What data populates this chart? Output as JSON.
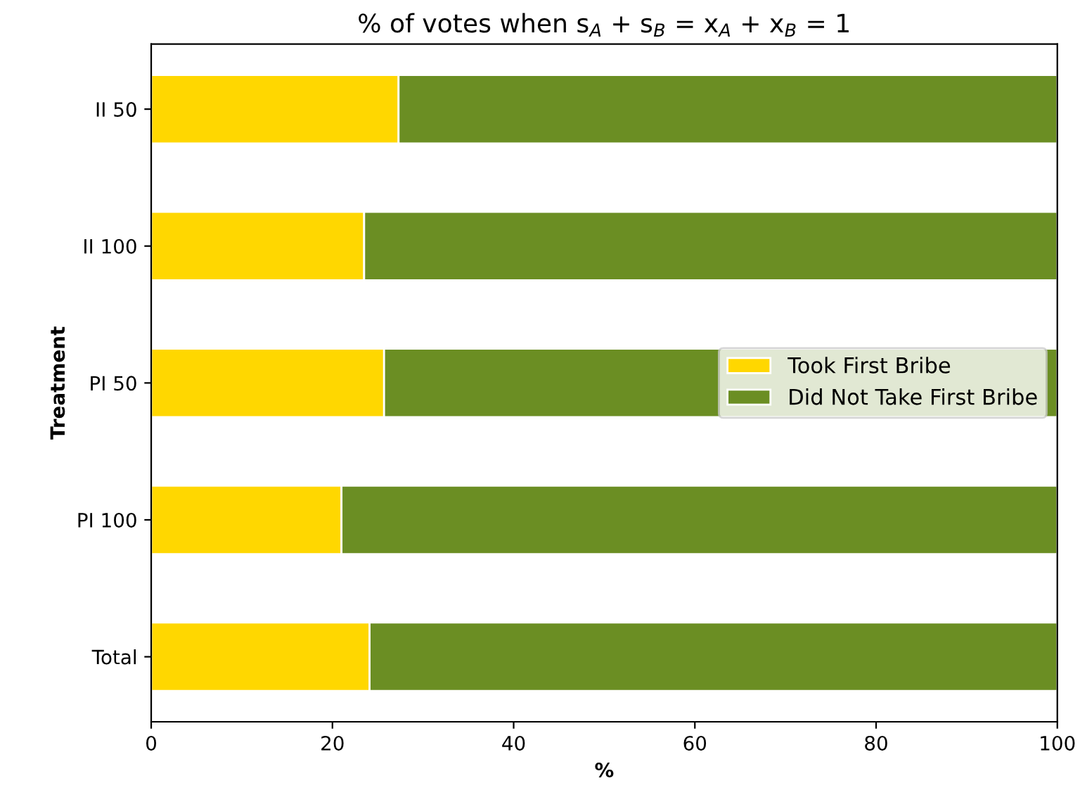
{
  "chart_data": {
    "type": "bar",
    "orientation": "horizontal",
    "stacked": true,
    "title": "% of votes when s$_{A}$ + s$_{B}$ = x$_{A}$ + x$_{B}$ = 1",
    "xlabel": "%",
    "ylabel": "Treatment",
    "categories": [
      "II 50",
      "II 100",
      "PI 50",
      "PI 100",
      "Total"
    ],
    "series": [
      {
        "name": "Took First Bribe",
        "color": "#ffd700",
        "values": [
          27.3,
          23.5,
          25.7,
          21.0,
          24.1
        ]
      },
      {
        "name": "Did Not Take First Bribe",
        "color": "#6b8e23",
        "values": [
          72.7,
          76.5,
          74.3,
          79.0,
          75.9
        ]
      }
    ],
    "xlim": [
      0,
      100
    ],
    "xticks": [
      0,
      20,
      40,
      60,
      80,
      100
    ],
    "grid": false,
    "legend": "right"
  }
}
